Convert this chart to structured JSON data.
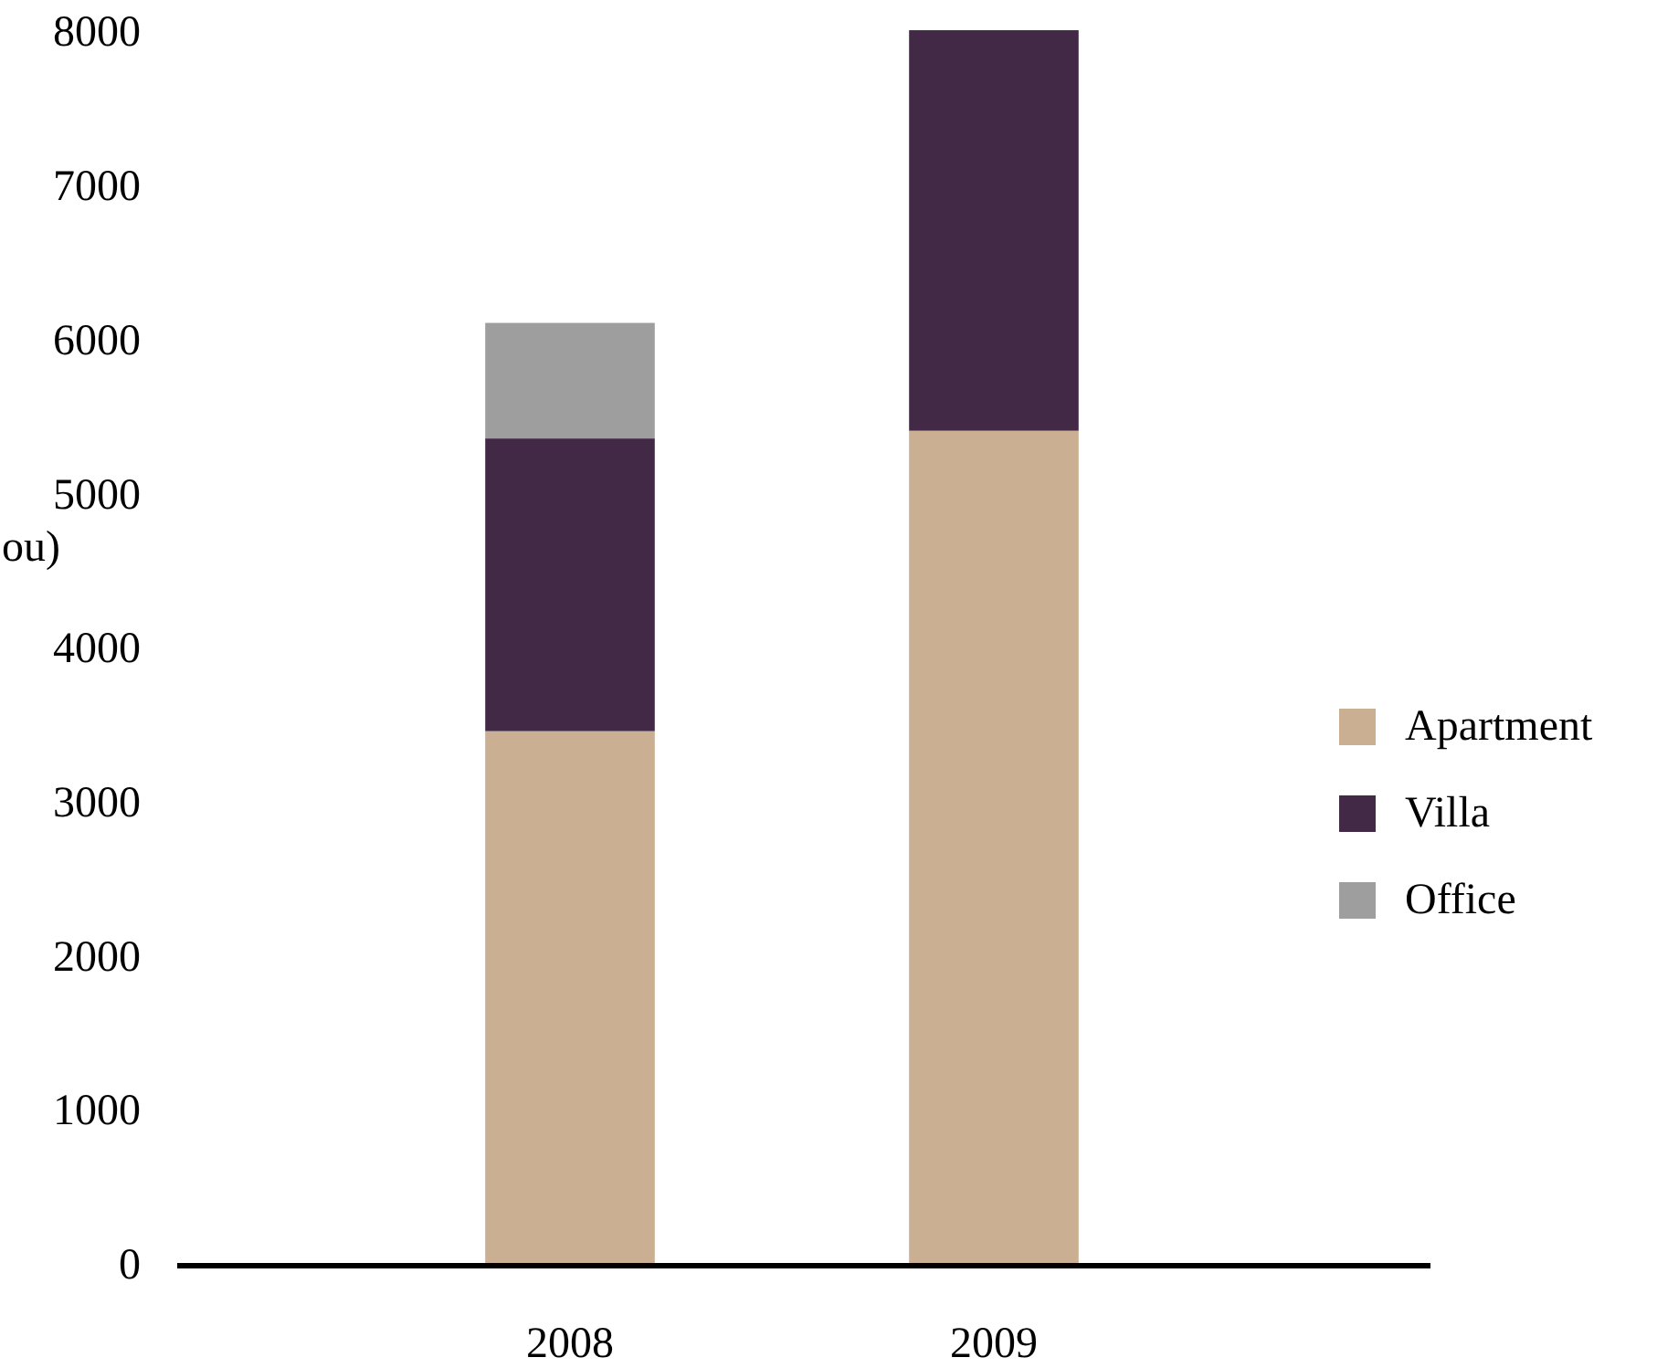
{
  "chart_data": {
    "type": "bar",
    "stacked": true,
    "ylabel": "ou)",
    "categories": [
      "2008",
      "2009"
    ],
    "series": [
      {
        "name": "Apartment",
        "color": "#cbaf93",
        "values": [
          3470,
          5420
        ]
      },
      {
        "name": "Villa",
        "color": "#422a47",
        "values": [
          1900,
          2600
        ]
      },
      {
        "name": "Office",
        "color": "#9e9e9e",
        "values": [
          750,
          null
        ]
      }
    ],
    "ylim": [
      0,
      8050
    ],
    "yticks": [
      0,
      1000,
      2000,
      3000,
      4000,
      5000,
      6000,
      7000,
      8000
    ],
    "legend": "right"
  }
}
